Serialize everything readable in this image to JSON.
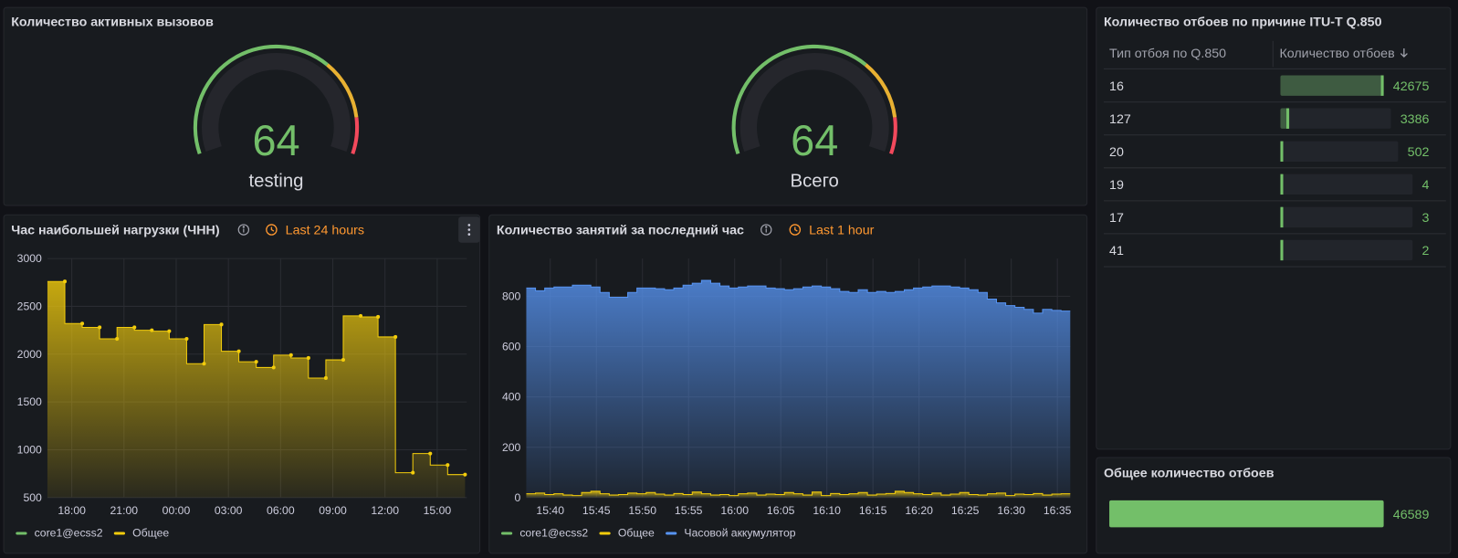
{
  "active_calls": {
    "title": "Количество активных вызовов",
    "gauges": [
      {
        "value": 64,
        "label": "testing",
        "color": "#73bf69"
      },
      {
        "value": 64,
        "label": "Всего",
        "color": "#73bf69"
      }
    ]
  },
  "causes_table": {
    "title": "Количество отбоев по причине ITU-T Q.850",
    "columns": [
      "Тип отбоя по Q.850",
      "Количество отбоев"
    ],
    "rows": [
      [
        16,
        42675
      ],
      [
        127,
        3386
      ],
      [
        20,
        502
      ],
      [
        19,
        4
      ],
      [
        17,
        3
      ],
      [
        41,
        2
      ]
    ],
    "color": "#73bf69"
  },
  "total_causes": {
    "title": "Общее количество отбоев",
    "value": 46589,
    "color": "#73bf69"
  },
  "chart_data": [
    {
      "type": "line",
      "step": true,
      "points": true,
      "title": "Час наибольшей нагрузки (ЧНН)",
      "time_range": "Last 24 hours",
      "x": [
        17.6,
        18.6,
        19.6,
        20.6,
        21.6,
        22.6,
        23.6,
        24.6,
        25.6,
        26.6,
        27.6,
        28.6,
        29.6,
        30.6,
        31.6,
        32.6,
        33.6,
        34.6,
        35.6,
        36.6,
        37.6,
        38.6,
        39.6,
        40.6
      ],
      "xlim": [
        16.6,
        40.7
      ],
      "xticks": [
        {
          "value": 18,
          "label": "18:00"
        },
        {
          "value": 21,
          "label": "21:00"
        },
        {
          "value": 24,
          "label": "00:00"
        },
        {
          "value": 27,
          "label": "03:00"
        },
        {
          "value": 30,
          "label": "06:00"
        },
        {
          "value": 33,
          "label": "09:00"
        },
        {
          "value": 36,
          "label": "12:00"
        },
        {
          "value": 39,
          "label": "15:00"
        }
      ],
      "ylim": [
        500,
        3000
      ],
      "yticks": [
        500,
        1000,
        1500,
        2000,
        2500,
        3000
      ],
      "grid": true,
      "legend": [
        {
          "name": "core1@ecss2",
          "color": "#73bf69"
        },
        {
          "name": "Общее",
          "color": "#f2cc0c"
        }
      ],
      "series": [
        {
          "name": "Общее",
          "color": "#f2cc0c",
          "values": [
            2760,
            2320,
            2280,
            2160,
            2280,
            2250,
            2240,
            2160,
            1900,
            2310,
            2030,
            1920,
            1860,
            1990,
            1960,
            1750,
            1940,
            2400,
            2390,
            2180,
            760,
            960,
            840,
            740
          ]
        }
      ]
    },
    {
      "type": "line",
      "step": true,
      "points": false,
      "title": "Количество занятий за последний час",
      "time_range": "Last 1 hour",
      "x": [
        38.4,
        39.4,
        40.4,
        41.4,
        42.4,
        43.4,
        44.4,
        45.4,
        46.4,
        47.4,
        48.4,
        49.4,
        50.4,
        51.4,
        52.4,
        53.4,
        54.4,
        55.4,
        56.4,
        57.4,
        58.4,
        59.4,
        60.4,
        61.4,
        62.4,
        63.4,
        64.4,
        65.4,
        66.4,
        67.4,
        68.4,
        69.4,
        70.4,
        71.4,
        72.4,
        73.4,
        74.4,
        75.4,
        76.4,
        77.4,
        78.4,
        79.4,
        80.4,
        81.4,
        82.4,
        83.4,
        84.4,
        85.4,
        86.4,
        87.4,
        88.4,
        89.4,
        90.4,
        91.4,
        92.4,
        93.4,
        94.4,
        95.4,
        96.4
      ],
      "xlim": [
        37.4,
        96.4
      ],
      "xticks": [
        {
          "value": 40,
          "label": "15:40"
        },
        {
          "value": 45,
          "label": "15:45"
        },
        {
          "value": 50,
          "label": "15:50"
        },
        {
          "value": 55,
          "label": "15:55"
        },
        {
          "value": 60,
          "label": "16:00"
        },
        {
          "value": 65,
          "label": "16:05"
        },
        {
          "value": 70,
          "label": "16:10"
        },
        {
          "value": 75,
          "label": "16:15"
        },
        {
          "value": 80,
          "label": "16:20"
        },
        {
          "value": 85,
          "label": "16:25"
        },
        {
          "value": 90,
          "label": "16:30"
        },
        {
          "value": 95,
          "label": "16:35"
        }
      ],
      "ylim": [
        0,
        950
      ],
      "yticks": [
        0,
        200,
        400,
        600,
        800
      ],
      "grid": true,
      "legend": [
        {
          "name": "core1@ecss2",
          "color": "#73bf69"
        },
        {
          "name": "Общее",
          "color": "#f2cc0c"
        },
        {
          "name": "Часовой аккумулятор",
          "color": "#5794f2"
        }
      ],
      "series": [
        {
          "name": "Часовой аккумулятор",
          "color": "#5794f2",
          "values": [
            833,
            822,
            833,
            837,
            837,
            844,
            844,
            837,
            815,
            796,
            796,
            815,
            833,
            833,
            830,
            826,
            833,
            844,
            852,
            863,
            852,
            841,
            833,
            837,
            841,
            841,
            833,
            830,
            826,
            830,
            837,
            841,
            837,
            830,
            819,
            815,
            826,
            815,
            819,
            815,
            819,
            826,
            833,
            837,
            841,
            841,
            837,
            833,
            826,
            815,
            789,
            774,
            763,
            756,
            748,
            733,
            748,
            744,
            741
          ]
        },
        {
          "name": "Общее",
          "color": "#f2cc0c",
          "values": [
            15,
            18,
            12,
            15,
            10,
            8,
            20,
            25,
            15,
            10,
            12,
            18,
            15,
            20,
            14,
            10,
            16,
            12,
            22,
            15,
            10,
            12,
            8,
            15,
            18,
            10,
            14,
            12,
            20,
            15,
            10,
            22,
            8,
            16,
            12,
            15,
            20,
            10,
            14,
            16,
            25,
            20,
            15,
            12,
            18,
            10,
            14,
            20,
            12,
            10,
            15,
            18,
            8,
            14,
            12,
            16,
            10,
            14,
            15
          ]
        }
      ]
    }
  ]
}
